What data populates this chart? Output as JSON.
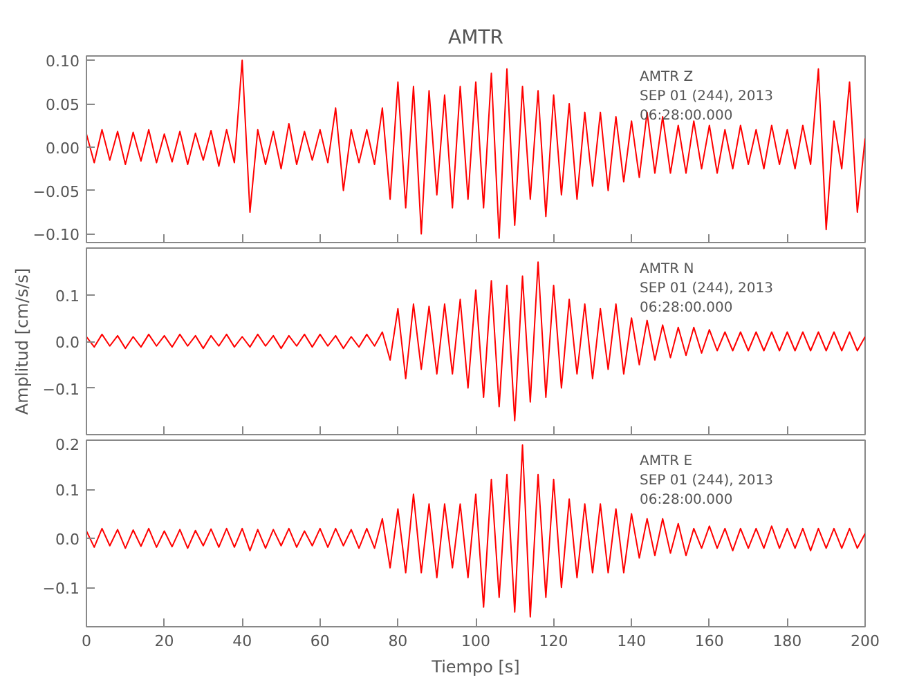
{
  "chart_data": [
    {
      "type": "line",
      "title": "AMTR",
      "annotations": [
        "AMTR   Z",
        "SEP 01 (244), 2013",
        "06:28:00.000"
      ],
      "tick_labels": "y",
      "xlim": [
        0,
        200
      ],
      "xticks": [
        0,
        20,
        40,
        60,
        80,
        100,
        120,
        140,
        160,
        180,
        200
      ],
      "ylim": [
        -0.11,
        0.105
      ],
      "yticks": [
        {
          "value": -0.1,
          "label": "−0.10"
        },
        {
          "value": -0.05,
          "label": "−0.05"
        },
        {
          "value": 0,
          "label": "0.00"
        },
        {
          "value": 0.05,
          "label": "0.05"
        },
        {
          "value": 0.1,
          "label": "0.10"
        }
      ],
      "series": [
        {
          "color": "#ff0000",
          "x": [
            0,
            2,
            4,
            6,
            8,
            10,
            12,
            14,
            16,
            18,
            20,
            22,
            24,
            26,
            28,
            30,
            32,
            34,
            36,
            38,
            40,
            42,
            44,
            46,
            48,
            50,
            52,
            54,
            56,
            58,
            60,
            62,
            64,
            66,
            68,
            70,
            72,
            74,
            76,
            78,
            80,
            82,
            84,
            86,
            88,
            90,
            92,
            94,
            96,
            98,
            100,
            102,
            104,
            106,
            108,
            110,
            112,
            114,
            116,
            118,
            120,
            122,
            124,
            126,
            128,
            130,
            132,
            134,
            136,
            138,
            140,
            142,
            144,
            146,
            148,
            150,
            152,
            154,
            156,
            158,
            160,
            162,
            164,
            166,
            168,
            170,
            172,
            174,
            176,
            178,
            180,
            182,
            184,
            186,
            188,
            190,
            192,
            194,
            196,
            198,
            200
          ],
          "values": [
            0.015,
            -0.018,
            0.02,
            -0.015,
            0.018,
            -0.02,
            0.017,
            -0.016,
            0.02,
            -0.018,
            0.015,
            -0.017,
            0.018,
            -0.02,
            0.016,
            -0.015,
            0.019,
            -0.022,
            0.02,
            -0.018,
            0.1,
            -0.075,
            0.02,
            -0.02,
            0.018,
            -0.025,
            0.027,
            -0.02,
            0.018,
            -0.015,
            0.02,
            -0.018,
            0.045,
            -0.05,
            0.02,
            -0.018,
            0.02,
            -0.02,
            0.045,
            -0.06,
            0.075,
            -0.07,
            0.07,
            -0.1,
            0.065,
            -0.055,
            0.06,
            -0.07,
            0.07,
            -0.06,
            0.075,
            -0.07,
            0.085,
            -0.105,
            0.09,
            -0.09,
            0.07,
            -0.06,
            0.065,
            -0.08,
            0.06,
            -0.055,
            0.05,
            -0.06,
            0.04,
            -0.045,
            0.04,
            -0.05,
            0.035,
            -0.04,
            0.03,
            -0.035,
            0.04,
            -0.03,
            0.035,
            -0.03,
            0.025,
            -0.03,
            0.03,
            -0.025,
            0.025,
            -0.03,
            0.02,
            -0.025,
            0.025,
            -0.02,
            0.02,
            -0.025,
            0.025,
            -0.02,
            0.02,
            -0.025,
            0.025,
            -0.02,
            0.09,
            -0.095,
            0.03,
            -0.025,
            0.075,
            -0.075,
            0.01
          ]
        }
      ]
    },
    {
      "type": "line",
      "ylabel": "Amplitud [cm/s/s]",
      "annotations": [
        "AMTR   N",
        "SEP 01 (244), 2013",
        "06:28:00.000"
      ],
      "tick_labels": "y",
      "xlim": [
        0,
        200
      ],
      "xticks": [
        0,
        20,
        40,
        60,
        80,
        100,
        120,
        140,
        160,
        180,
        200
      ],
      "ylim": [
        -0.2,
        0.2
      ],
      "yticks": [
        {
          "value": -0.1,
          "label": "−0.1"
        },
        {
          "value": 0,
          "label": "0.0"
        },
        {
          "value": 0.1,
          "label": "0.1"
        }
      ],
      "series": [
        {
          "color": "#ff0000",
          "x": [
            0,
            2,
            4,
            6,
            8,
            10,
            12,
            14,
            16,
            18,
            20,
            22,
            24,
            26,
            28,
            30,
            32,
            34,
            36,
            38,
            40,
            42,
            44,
            46,
            48,
            50,
            52,
            54,
            56,
            58,
            60,
            62,
            64,
            66,
            68,
            70,
            72,
            74,
            76,
            78,
            80,
            82,
            84,
            86,
            88,
            90,
            92,
            94,
            96,
            98,
            100,
            102,
            104,
            106,
            108,
            110,
            112,
            114,
            116,
            118,
            120,
            122,
            124,
            126,
            128,
            130,
            132,
            134,
            136,
            138,
            140,
            142,
            144,
            146,
            148,
            150,
            152,
            154,
            156,
            158,
            160,
            162,
            164,
            166,
            168,
            170,
            172,
            174,
            176,
            178,
            180,
            182,
            184,
            186,
            188,
            190,
            192,
            194,
            196,
            198,
            200
          ],
          "values": [
            0.01,
            -0.012,
            0.015,
            -0.01,
            0.012,
            -0.015,
            0.01,
            -0.012,
            0.015,
            -0.01,
            0.012,
            -0.012,
            0.015,
            -0.01,
            0.012,
            -0.015,
            0.012,
            -0.01,
            0.015,
            -0.012,
            0.01,
            -0.012,
            0.015,
            -0.01,
            0.012,
            -0.015,
            0.012,
            -0.01,
            0.015,
            -0.012,
            0.015,
            -0.01,
            0.012,
            -0.015,
            0.01,
            -0.012,
            0.015,
            -0.01,
            0.02,
            -0.04,
            0.07,
            -0.08,
            0.08,
            -0.06,
            0.075,
            -0.07,
            0.08,
            -0.07,
            0.09,
            -0.1,
            0.11,
            -0.12,
            0.13,
            -0.14,
            0.12,
            -0.17,
            0.14,
            -0.13,
            0.17,
            -0.12,
            0.12,
            -0.1,
            0.09,
            -0.07,
            0.08,
            -0.08,
            0.07,
            -0.06,
            0.08,
            -0.07,
            0.05,
            -0.05,
            0.045,
            -0.04,
            0.035,
            -0.035,
            0.03,
            -0.03,
            0.03,
            -0.025,
            0.025,
            -0.02,
            0.02,
            -0.02,
            0.02,
            -0.02,
            0.02,
            -0.02,
            0.02,
            -0.02,
            0.02,
            -0.02,
            0.02,
            -0.02,
            0.02,
            -0.02,
            0.02,
            -0.02,
            0.02,
            -0.02,
            0.01
          ]
        }
      ]
    },
    {
      "type": "line",
      "xlabel": "Tiempo [s]",
      "annotations": [
        "AMTR   E",
        "SEP 01 (244), 2013",
        "06:28:00.000"
      ],
      "xlim": [
        0,
        200
      ],
      "xticks": [
        0,
        20,
        40,
        60,
        80,
        100,
        120,
        140,
        160,
        180,
        200
      ],
      "ylim": [
        -0.18,
        0.2
      ],
      "yticks": [
        {
          "value": -0.1,
          "label": "−0.1"
        },
        {
          "value": 0,
          "label": "0.0"
        },
        {
          "value": 0.1,
          "label": "0.1"
        },
        {
          "value": 0.2,
          "label": "0.2"
        }
      ],
      "series": [
        {
          "color": "#ff0000",
          "x": [
            0,
            2,
            4,
            6,
            8,
            10,
            12,
            14,
            16,
            18,
            20,
            22,
            24,
            26,
            28,
            30,
            32,
            34,
            36,
            38,
            40,
            42,
            44,
            46,
            48,
            50,
            52,
            54,
            56,
            58,
            60,
            62,
            64,
            66,
            68,
            70,
            72,
            74,
            76,
            78,
            80,
            82,
            84,
            86,
            88,
            90,
            92,
            94,
            96,
            98,
            100,
            102,
            104,
            106,
            108,
            110,
            112,
            114,
            116,
            118,
            120,
            122,
            124,
            126,
            128,
            130,
            132,
            134,
            136,
            138,
            140,
            142,
            144,
            146,
            148,
            150,
            152,
            154,
            156,
            158,
            160,
            162,
            164,
            166,
            168,
            170,
            172,
            174,
            176,
            178,
            180,
            182,
            184,
            186,
            188,
            190,
            192,
            194,
            196,
            198,
            200
          ],
          "values": [
            0.015,
            -0.018,
            0.02,
            -0.015,
            0.018,
            -0.02,
            0.017,
            -0.016,
            0.02,
            -0.018,
            0.015,
            -0.017,
            0.018,
            -0.02,
            0.016,
            -0.015,
            0.019,
            -0.018,
            0.02,
            -0.018,
            0.02,
            -0.025,
            0.018,
            -0.02,
            0.018,
            -0.015,
            0.02,
            -0.018,
            0.015,
            -0.015,
            0.02,
            -0.018,
            0.02,
            -0.015,
            0.018,
            -0.02,
            0.02,
            -0.02,
            0.04,
            -0.06,
            0.06,
            -0.07,
            0.09,
            -0.07,
            0.07,
            -0.08,
            0.07,
            -0.06,
            0.07,
            -0.08,
            0.09,
            -0.14,
            0.12,
            -0.12,
            0.13,
            -0.15,
            0.19,
            -0.16,
            0.13,
            -0.12,
            0.12,
            -0.1,
            0.08,
            -0.08,
            0.07,
            -0.07,
            0.07,
            -0.07,
            0.06,
            -0.07,
            0.05,
            -0.04,
            0.04,
            -0.035,
            0.04,
            -0.03,
            0.03,
            -0.035,
            0.02,
            -0.02,
            0.025,
            -0.02,
            0.02,
            -0.025,
            0.02,
            -0.02,
            0.02,
            -0.02,
            0.025,
            -0.02,
            0.02,
            -0.02,
            0.02,
            -0.025,
            0.02,
            -0.02,
            0.02,
            -0.02,
            0.02,
            -0.02,
            0.01
          ]
        }
      ]
    }
  ]
}
